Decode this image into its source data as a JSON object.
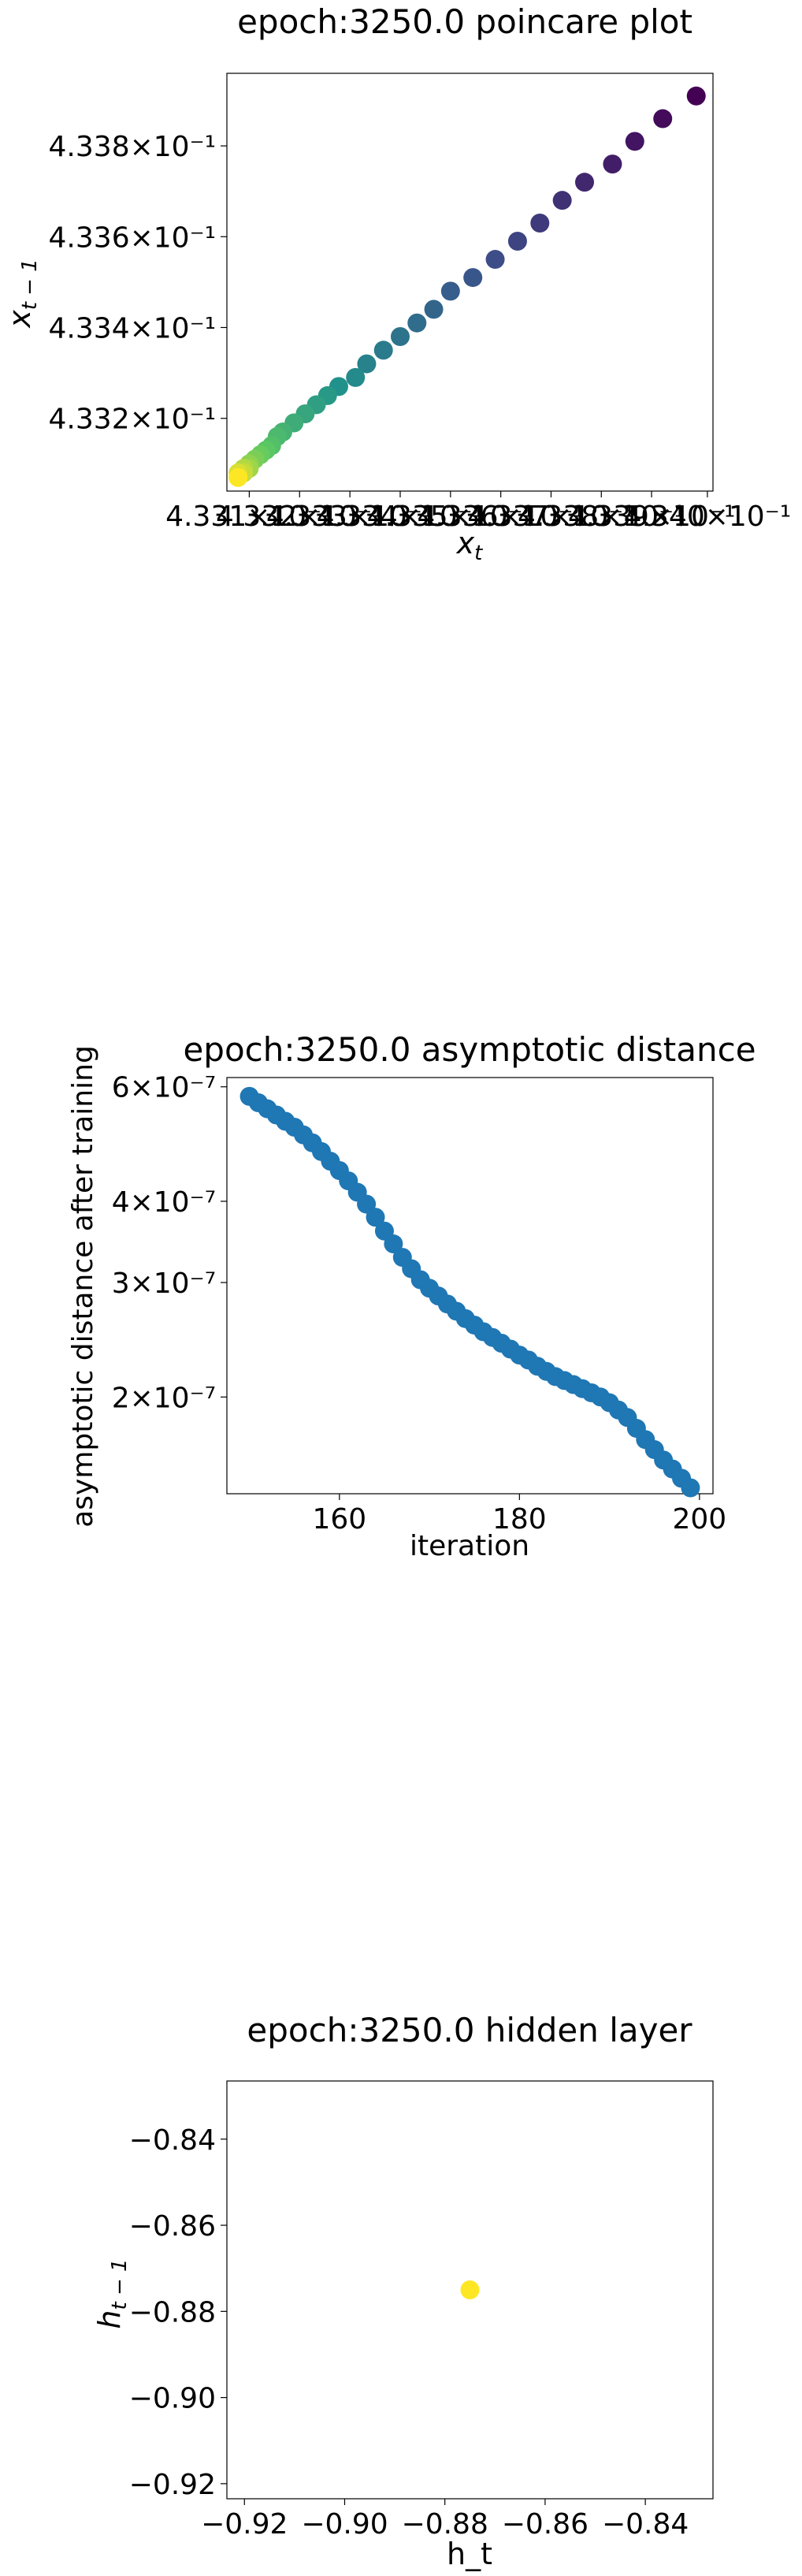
{
  "chart_data": [
    {
      "type": "scatter",
      "title": "epoch:3250.0 poincare plot",
      "xlabel_base": "x",
      "xlabel_sub": "t",
      "ylabel_base": "x",
      "ylabel_sub": "t − 1",
      "x_scale": "log",
      "y_scale": "log",
      "xlim": [
        0.43308,
        0.43395
      ],
      "ylim": [
        0.43304,
        0.43396
      ],
      "x_ticks": [
        {
          "value": 0.43312,
          "text": "4.331×10⁻¹"
        },
        {
          "value": 0.43321,
          "text": "4.332×10⁻¹"
        },
        {
          "value": 0.4333,
          "text": "4.333×10⁻¹"
        },
        {
          "value": 0.43339,
          "text": "4.334×10⁻¹"
        },
        {
          "value": 0.43348,
          "text": "4.335×10⁻¹"
        },
        {
          "value": 0.43357,
          "text": "4.336×10⁻¹"
        },
        {
          "value": 0.43366,
          "text": "4.337×10⁻¹"
        },
        {
          "value": 0.43375,
          "text": "4.338×10⁻¹"
        },
        {
          "value": 0.43384,
          "text": "4.339×10⁻¹"
        },
        {
          "value": 0.43394,
          "text": "4.340×10⁻¹"
        }
      ],
      "y_ticks": [
        {
          "value": 0.4332,
          "text": "4.332×10⁻¹"
        },
        {
          "value": 0.4334,
          "text": "4.334×10⁻¹"
        },
        {
          "value": 0.4336,
          "text": "4.336×10⁻¹"
        },
        {
          "value": 0.4338,
          "text": "4.338×10⁻¹"
        }
      ],
      "colormap": "viridis",
      "colormap_colors": [
        "#440154",
        "#3b528b",
        "#21918c",
        "#5ec962",
        "#fde725"
      ],
      "points": {
        "x": [
          0.43392,
          0.43386,
          0.43381,
          0.43377,
          0.43372,
          0.43368,
          0.43364,
          0.4336,
          0.43356,
          0.43352,
          0.43348,
          0.43345,
          0.43342,
          0.43339,
          0.43336,
          0.43333,
          0.43331,
          0.43328,
          0.43326,
          0.43324,
          0.43322,
          0.4332,
          0.43318,
          0.43317,
          0.43316,
          0.43315,
          0.43314,
          0.43313,
          0.43312,
          0.43312,
          0.43311,
          0.43311,
          0.4331,
          0.4331,
          0.4331
        ],
        "y": [
          0.43391,
          0.43386,
          0.43381,
          0.43376,
          0.43372,
          0.43368,
          0.43363,
          0.43359,
          0.43355,
          0.43351,
          0.43348,
          0.43344,
          0.43341,
          0.43338,
          0.43335,
          0.43332,
          0.43329,
          0.43327,
          0.43325,
          0.43323,
          0.43321,
          0.43319,
          0.43317,
          0.43316,
          0.43314,
          0.43313,
          0.43312,
          0.43311,
          0.4331,
          0.43309,
          0.43309,
          0.43308,
          0.43308,
          0.43307,
          0.43307
        ]
      }
    },
    {
      "type": "scatter",
      "title": "epoch:3250.0 asymptotic distance",
      "xlabel": "iteration",
      "ylabel": "asymptotic distance after training",
      "x_scale": "linear",
      "y_scale": "log",
      "xlim": [
        147.5,
        201.5
      ],
      "ylim": [
        1.42e-07,
        6.2e-07
      ],
      "x_ticks": [
        {
          "value": 160,
          "text": "160"
        },
        {
          "value": 180,
          "text": "180"
        },
        {
          "value": 200,
          "text": "200"
        }
      ],
      "y_ticks": [
        {
          "value": 2e-07,
          "text": "2×10⁻⁷"
        },
        {
          "value": 3e-07,
          "text": "3×10⁻⁷"
        },
        {
          "value": 4e-07,
          "text": "4×10⁻⁷"
        },
        {
          "value": 6e-07,
          "text": "6×10⁻⁷"
        }
      ],
      "point_color": "#1f77b4",
      "points": {
        "x": [
          150,
          151,
          152,
          153,
          154,
          155,
          156,
          157,
          158,
          159,
          160,
          161,
          162,
          163,
          164,
          165,
          166,
          167,
          168,
          169,
          170,
          171,
          172,
          173,
          174,
          175,
          176,
          177,
          178,
          179,
          180,
          181,
          182,
          183,
          184,
          185,
          186,
          187,
          188,
          189,
          190,
          191,
          192,
          193,
          194,
          195,
          196,
          197,
          198,
          199
        ],
        "y": [
          5.8e-07,
          5.67e-07,
          5.55e-07,
          5.43e-07,
          5.31e-07,
          5.2e-07,
          5.06e-07,
          4.92e-07,
          4.77e-07,
          4.61e-07,
          4.46e-07,
          4.3e-07,
          4.13e-07,
          3.96e-07,
          3.78e-07,
          3.6e-07,
          3.44e-07,
          3.28e-07,
          3.15e-07,
          3.03e-07,
          2.94e-07,
          2.86e-07,
          2.78e-07,
          2.71e-07,
          2.64e-07,
          2.58e-07,
          2.52e-07,
          2.47e-07,
          2.42e-07,
          2.37e-07,
          2.32e-07,
          2.28e-07,
          2.23e-07,
          2.19e-07,
          2.15e-07,
          2.12e-07,
          2.09e-07,
          2.06e-07,
          2.03e-07,
          2e-07,
          1.96e-07,
          1.91e-07,
          1.86e-07,
          1.79e-07,
          1.72e-07,
          1.66e-07,
          1.6e-07,
          1.55e-07,
          1.5e-07,
          1.45e-07
        ]
      }
    },
    {
      "type": "scatter",
      "title": "epoch:3250.0 hidden layer",
      "xlabel": "h_t",
      "ylabel_base": "h",
      "ylabel_sub": "t − 1",
      "x_scale": "linear",
      "y_scale": "linear",
      "xlim": [
        -0.9235,
        -0.8265
      ],
      "ylim": [
        -0.9235,
        -0.8265
      ],
      "x_ticks": [
        {
          "value": -0.92,
          "text": "−0.92"
        },
        {
          "value": -0.9,
          "text": "−0.90"
        },
        {
          "value": -0.88,
          "text": "−0.88"
        },
        {
          "value": -0.86,
          "text": "−0.86"
        },
        {
          "value": -0.84,
          "text": "−0.84"
        }
      ],
      "y_ticks": [
        {
          "value": -0.92,
          "text": "−0.92"
        },
        {
          "value": -0.9,
          "text": "−0.90"
        },
        {
          "value": -0.88,
          "text": "−0.88"
        },
        {
          "value": -0.86,
          "text": "−0.86"
        },
        {
          "value": -0.84,
          "text": "−0.84"
        }
      ],
      "point_color": "#fde725",
      "points": {
        "x": [
          -0.875
        ],
        "y": [
          -0.875
        ]
      }
    }
  ]
}
